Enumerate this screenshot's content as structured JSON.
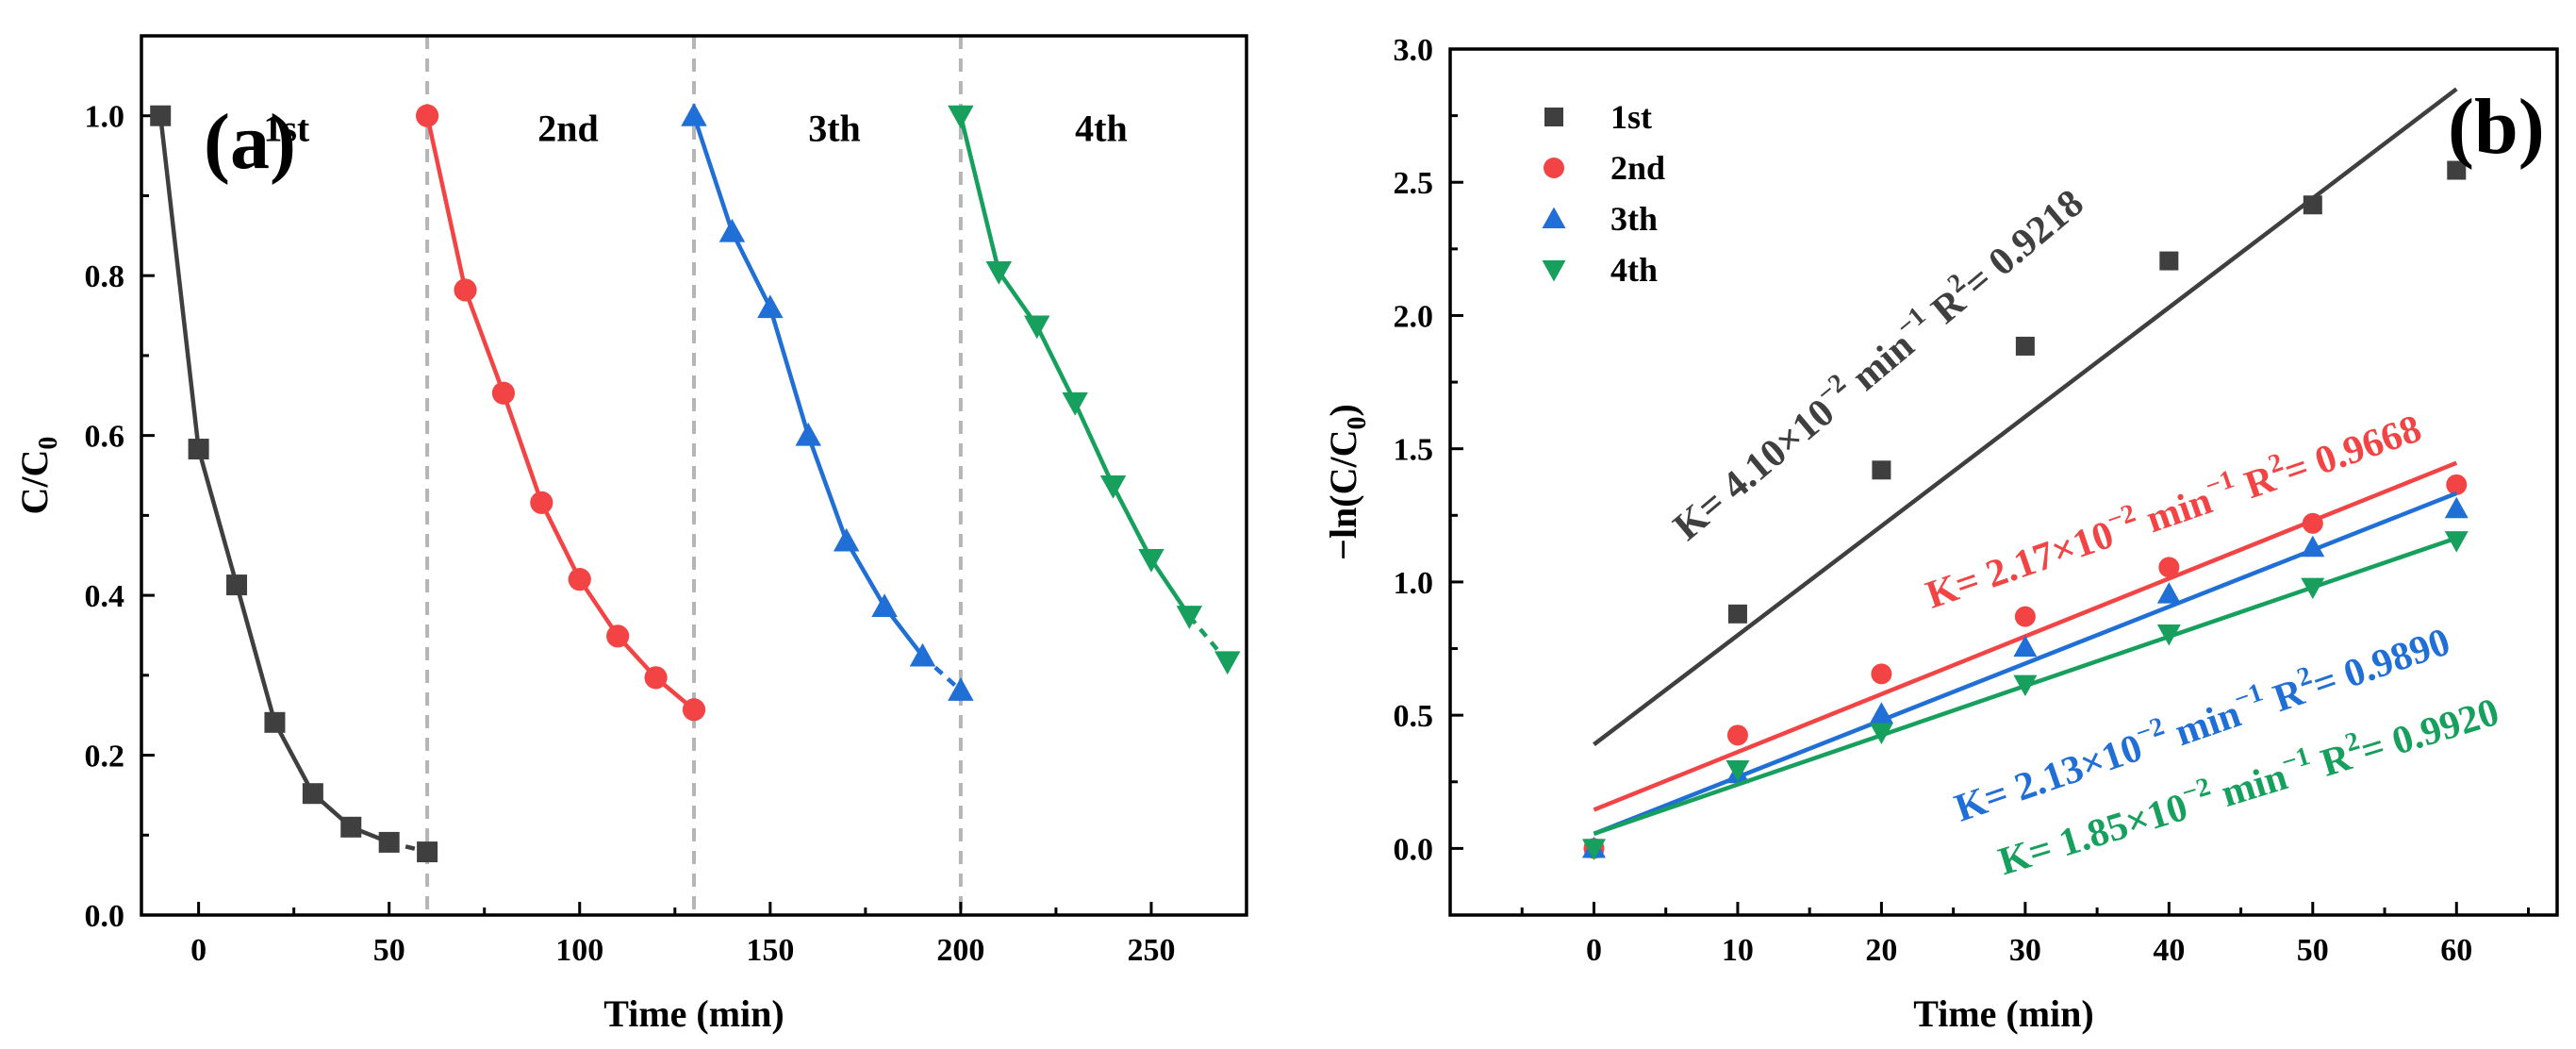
{
  "chart_data": [
    {
      "panel": "(a)",
      "type": "line",
      "xlabel": "Time (min)",
      "ylabel": "C/C0",
      "ylabel_main": "C/C",
      "ylabel_sub": "0",
      "xlim": [
        -15,
        275
      ],
      "ylim": [
        0,
        1.1
      ],
      "xticks": [
        0,
        50,
        100,
        150,
        200,
        250
      ],
      "yticks": [
        0.0,
        0.2,
        0.4,
        0.6,
        0.8,
        1.0
      ],
      "xtick_labels": [
        "0",
        "50",
        "100",
        "150",
        "200",
        "250"
      ],
      "ytick_labels": [
        "0.0",
        "0.2",
        "0.4",
        "0.6",
        "0.8",
        "1.0"
      ],
      "separators": [
        60,
        130,
        200
      ],
      "series": [
        {
          "name": "1st",
          "color": "#3f3f3f",
          "marker": "square",
          "dashed_tail": true,
          "x": [
            -10,
            0,
            10,
            20,
            30,
            40,
            50,
            60
          ],
          "y": [
            1.0,
            0.583,
            0.413,
            0.241,
            0.152,
            0.11,
            0.091,
            0.079
          ]
        },
        {
          "name": "2nd",
          "color": "#f24444",
          "marker": "circle",
          "dashed_tail": false,
          "x": [
            60,
            70,
            80,
            90,
            100,
            110,
            120,
            130
          ],
          "y": [
            1.0,
            0.782,
            0.653,
            0.516,
            0.42,
            0.349,
            0.297,
            0.257
          ]
        },
        {
          "name": "3th",
          "color": "#1f6fd6",
          "marker": "triangle-up",
          "dashed_tail": true,
          "x": [
            130,
            140,
            150,
            160,
            170,
            180,
            190,
            200
          ],
          "y": [
            1.0,
            0.855,
            0.76,
            0.6,
            0.468,
            0.386,
            0.324,
            0.281
          ]
        },
        {
          "name": "4th",
          "color": "#17a05d",
          "marker": "triangle-down",
          "dashed_tail": true,
          "x": [
            200,
            210,
            220,
            230,
            240,
            250,
            260,
            270
          ],
          "y": [
            1.0,
            0.805,
            0.737,
            0.641,
            0.537,
            0.445,
            0.374,
            0.317
          ]
        }
      ],
      "cycle_labels": [
        {
          "text": "1st",
          "x": 17,
          "y": 0.985
        },
        {
          "text": "2nd",
          "x": 89,
          "y": 0.985
        },
        {
          "text": "3th",
          "x": 160,
          "y": 0.985
        },
        {
          "text": "4th",
          "x": 230,
          "y": 0.985
        }
      ]
    },
    {
      "panel": "(b)",
      "type": "scatter",
      "xlabel": "Time (min)",
      "ylabel": "−ln(C/C0)",
      "ylabel_main": "−ln(C/C",
      "ylabel_sub": "0",
      "ylabel_end": ")",
      "xlim": [
        -10,
        67
      ],
      "ylim": [
        -0.25,
        3.0
      ],
      "xticks": [
        0,
        10,
        20,
        30,
        40,
        50,
        60
      ],
      "yticks": [
        0.0,
        0.5,
        1.0,
        1.5,
        2.0,
        2.5,
        3.0
      ],
      "xtick_labels": [
        "0",
        "10",
        "20",
        "30",
        "40",
        "50",
        "60"
      ],
      "ytick_labels": [
        "0.0",
        "0.5",
        "1.0",
        "1.5",
        "2.0",
        "2.5",
        "3.0"
      ],
      "legend": {
        "position": "top-left",
        "entries": [
          "1st",
          "2nd",
          "3th",
          "4th"
        ]
      },
      "series": [
        {
          "name": "1st",
          "color": "#3f3f3f",
          "marker": "square",
          "x": [
            0,
            10,
            20,
            30,
            40,
            50,
            60
          ],
          "y": [
            0.0,
            0.88,
            1.42,
            1.885,
            2.205,
            2.415,
            2.545
          ],
          "fit": {
            "slope": 0.041,
            "intercept": 0.39
          }
        },
        {
          "name": "2nd",
          "color": "#f24444",
          "marker": "circle",
          "x": [
            0,
            10,
            20,
            30,
            40,
            50,
            60
          ],
          "y": [
            0.0,
            0.425,
            0.655,
            0.87,
            1.055,
            1.22,
            1.365
          ],
          "fit": {
            "slope": 0.0217,
            "intercept": 0.145
          }
        },
        {
          "name": "3th",
          "color": "#1f6fd6",
          "marker": "triangle-up",
          "x": [
            0,
            10,
            20,
            30,
            40,
            50,
            60
          ],
          "y": [
            0.0,
            0.28,
            0.505,
            0.755,
            0.955,
            1.13,
            1.275
          ],
          "fit": {
            "slope": 0.0213,
            "intercept": 0.055
          }
        },
        {
          "name": "4th",
          "color": "#17a05d",
          "marker": "triangle-down",
          "x": [
            0,
            10,
            20,
            30,
            40,
            50,
            60
          ],
          "y": [
            0.0,
            0.295,
            0.435,
            0.615,
            0.805,
            0.98,
            1.155
          ],
          "fit": {
            "slope": 0.0185,
            "intercept": 0.055
          }
        }
      ],
      "annotations": [
        {
          "series": "1st",
          "k_text": "K= 4.10×10",
          "k_exp": "−2",
          "unit": " min",
          "unit_exp": "−1",
          "r2_text": "R",
          "r2_exp": "2",
          "r2_value": "= 0.9218",
          "x": 6.5,
          "y": 1.15,
          "angle_deg": -40
        },
        {
          "series": "2nd",
          "k_text": "K= 2.17×10",
          "k_exp": "−2",
          "unit": " min",
          "unit_exp": "−1",
          "r2_text": "R",
          "r2_exp": "2",
          "r2_value": "= 0.9668",
          "x": 23.5,
          "y": 0.9,
          "angle_deg": -19
        },
        {
          "series": "3th",
          "k_text": "K= 2.13×10",
          "k_exp": "−2",
          "unit": " min",
          "unit_exp": "−1",
          "r2_text": "R",
          "r2_exp": "2",
          "r2_value": "= 0.9890",
          "x": 25.5,
          "y": 0.1,
          "angle_deg": -19
        },
        {
          "series": "4th",
          "k_text": "K= 1.85×10",
          "k_exp": "−2",
          "unit": " min",
          "unit_exp": "−1",
          "r2_text": "R",
          "r2_exp": "2",
          "r2_value": "= 0.9920",
          "x": 28.5,
          "y": -0.1,
          "angle_deg": -17
        }
      ]
    }
  ]
}
